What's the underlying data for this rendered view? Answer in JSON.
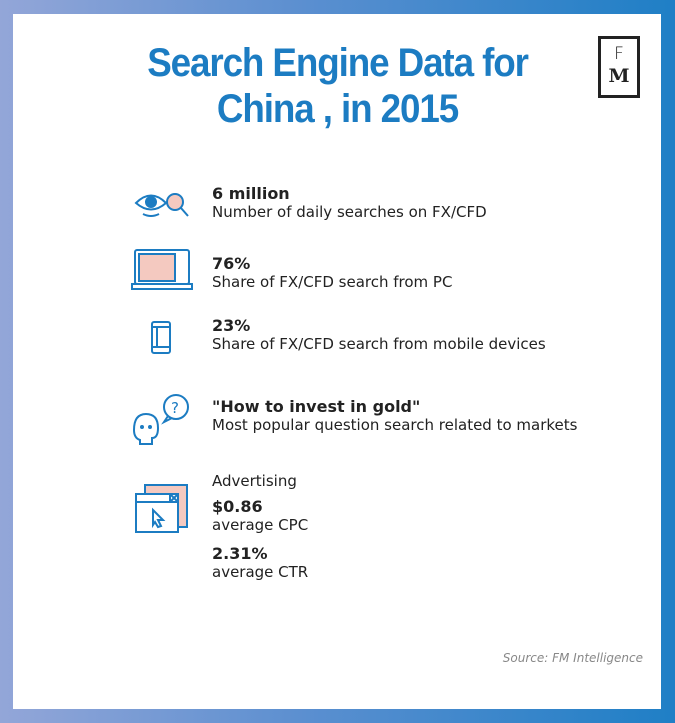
{
  "title_line1": "Search Engine Data for",
  "title_line2": "China , in 2015",
  "logo": {
    "top": "F",
    "bottom": "M"
  },
  "items": [
    {
      "icon": "eye-magnifier-icon",
      "value": "6 million",
      "label": "Number of daily searches on FX/CFD"
    },
    {
      "icon": "laptop-icon",
      "value": "76%",
      "label": "Share of FX/CFD search from PC"
    },
    {
      "icon": "mobile-phone-icon",
      "value": "23%",
      "label": "Share of FX/CFD search from mobile devices"
    },
    {
      "icon": "head-question-icon",
      "value": "\"How to invest in gold\"",
      "label": "Most popular question search related to markets"
    }
  ],
  "advertising": {
    "icon": "browser-cursor-icon",
    "heading": "Advertising",
    "cpc_value": "$0.86",
    "cpc_label": "average CPC",
    "ctr_value": "2.31%",
    "ctr_label": "average CTR"
  },
  "source": "Source: FM Intelligence",
  "colors": {
    "accent": "#1c7cc2",
    "icon_fill": "#f4c9c0"
  }
}
